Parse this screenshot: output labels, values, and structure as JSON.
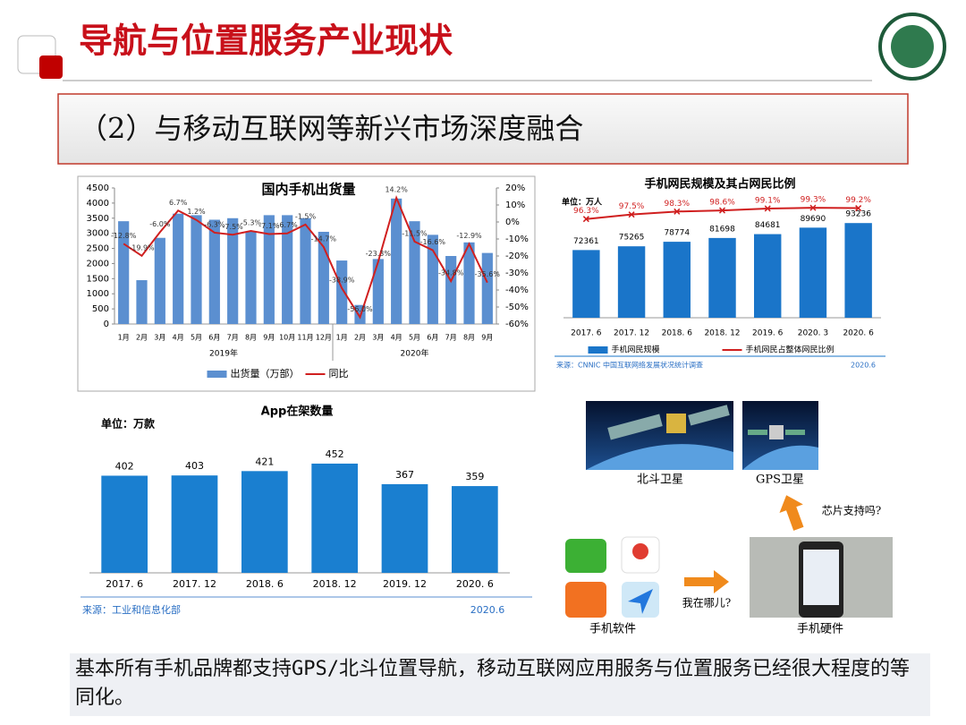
{
  "header": {
    "title": "导航与位置服务产业现状",
    "subtitle": "（2）与移动互联网等新兴市场深度融合"
  },
  "chart_data": [
    {
      "type": "bar",
      "title": "国内手机出货量",
      "category_groups": [
        {
          "name": "2019年",
          "categories": [
            "1月",
            "2月",
            "3月",
            "4月",
            "5月",
            "6月",
            "7月",
            "8月",
            "9月",
            "10月",
            "11月",
            "12月"
          ]
        },
        {
          "name": "2020年",
          "categories": [
            "1月",
            "2月",
            "3月",
            "4月",
            "5月",
            "6月",
            "7月",
            "8月",
            "9月"
          ]
        }
      ],
      "series": [
        {
          "name": "出货量（万部）",
          "type": "bar",
          "color": "#5b8fd0",
          "values": [
            3400,
            1450,
            2850,
            3650,
            3600,
            3450,
            3500,
            3050,
            3600,
            3600,
            3500,
            3050,
            2100,
            630,
            2150,
            4150,
            3400,
            2950,
            2250,
            2700,
            2350
          ]
        },
        {
          "name": "同比",
          "type": "line",
          "axis": "y2",
          "color": "#d01f1f",
          "values": [
            -12.8,
            -19.9,
            -6.0,
            6.7,
            1.2,
            -6.3,
            -7.5,
            -5.3,
            -7.1,
            -6.7,
            -1.5,
            -14.7,
            -38.9,
            -56.0,
            -23.3,
            14.2,
            -11.5,
            -16.6,
            -34.8,
            -12.9,
            -35.6
          ],
          "value_labels": [
            "-12.8%",
            "-19.9%",
            "-6.0%",
            "6.7%",
            "1.2%",
            "-6.3%",
            "-7.5%",
            "-5.3%",
            "-7.1%",
            "-6.7%",
            "-1.5%",
            "-14.7%",
            "-38.9%",
            "-56.0%",
            "-23.3%",
            "14.2%",
            "-11.5%",
            "-16.6%",
            "-34.8%",
            "-12.9%",
            "-35.6%"
          ]
        }
      ],
      "ylim": [
        0,
        4500
      ],
      "yticks": [
        0,
        500,
        1000,
        1500,
        2000,
        2500,
        3000,
        3500,
        4000,
        4500
      ],
      "y2lim": [
        -60,
        20
      ],
      "y2ticks": [
        {
          "value": 20,
          "label": "20%"
        },
        {
          "value": 10,
          "label": "10%"
        },
        {
          "value": 0,
          "label": "0%"
        },
        {
          "value": -10,
          "label": "-10%"
        },
        {
          "value": -20,
          "label": "-20%"
        },
        {
          "value": -30,
          "label": "-30%"
        },
        {
          "value": -40,
          "label": "-40%"
        },
        {
          "value": -50,
          "label": "-50%"
        },
        {
          "value": -60,
          "label": "-60%"
        }
      ],
      "legend": "bottom"
    },
    {
      "type": "bar",
      "title": "手机网民规模及其占网民比例",
      "unit": "单位：万人",
      "categories": [
        "2017. 6",
        "2017. 12",
        "2018. 6",
        "2018. 12",
        "2019. 6",
        "2020. 3",
        "2020. 6"
      ],
      "series": [
        {
          "name": "手机网民规模",
          "type": "bar",
          "color": "#1a75c9",
          "values": [
            72361,
            75265,
            78774,
            81698,
            84681,
            89690,
            93236
          ]
        },
        {
          "name": "手机网民占整体网民比例",
          "type": "line",
          "axis": "y2",
          "color": "#d01f1f",
          "values": [
            96.3,
            97.5,
            98.3,
            98.6,
            99.1,
            99.3,
            99.2
          ],
          "value_labels": [
            "96.3%",
            "97.5%",
            "98.3%",
            "98.6%",
            "99.1%",
            "99.3%",
            "99.2%"
          ]
        }
      ],
      "ylim": [
        20000,
        110000
      ],
      "y2lim": [
        70,
        101
      ],
      "legend": "bottom",
      "source": "来源：CNNIC 中国互联网络发展状况统计调查",
      "source_date": "2020.6"
    },
    {
      "type": "bar",
      "title": "App在架数量",
      "unit": "单位：万款",
      "categories": [
        "2017. 6",
        "2017. 12",
        "2018. 6",
        "2018. 12",
        "2019. 12",
        "2020. 6"
      ],
      "series": [
        {
          "name": null,
          "type": "bar",
          "color": "#1a7fd0",
          "values": [
            402,
            403,
            421,
            452,
            367,
            359
          ]
        }
      ],
      "ylim": [
        0,
        500
      ],
      "source": "来源：工业和信息化部",
      "source_date": "2020.6"
    }
  ],
  "diagram": {
    "beidou": "北斗卫星",
    "gps": "GPS卫星",
    "chip": "芯片支持吗?",
    "where": "我在哪儿?",
    "software": "手机软件",
    "hardware": "手机硬件"
  },
  "footer": {
    "text": "基本所有手机品牌都支持GPS/北斗位置导航，移动互联网应用服务与位置服务已经很大程度的等同化。"
  }
}
